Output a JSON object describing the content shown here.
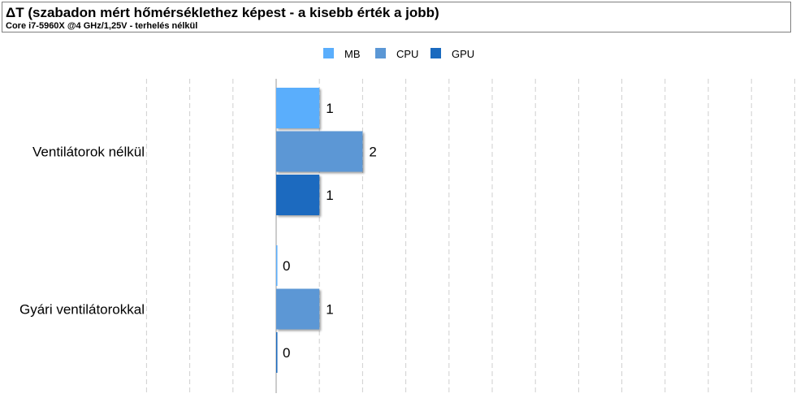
{
  "header": {
    "title": "ΔT (szabadon mért hőmérséklethez képest - a kisebb érték a jobb)",
    "subtitle": "Core i7-5960X @4 GHz/1,25V - terhelés nélkül"
  },
  "chart_data": {
    "type": "bar",
    "orientation": "horizontal",
    "title": "ΔT (szabadon mért hőmérséklethez képest - a kisebb érték a jobb)",
    "subtitle": "Core i7-5960X @4 GHz/1,25V - terhelés nélkül",
    "categories": [
      "Ventilátorok nélkül",
      "Gyári ventilátorokkal"
    ],
    "series": [
      {
        "name": "MB",
        "values": [
          1,
          0
        ],
        "color": "#5aaefc"
      },
      {
        "name": "CPU",
        "values": [
          2,
          1
        ],
        "color": "#5b97d5"
      },
      {
        "name": "GPU",
        "values": [
          1,
          0
        ],
        "color": "#1a6abf"
      }
    ],
    "xlim": [
      -3,
      12
    ],
    "grid": true,
    "legend_position": "top"
  }
}
